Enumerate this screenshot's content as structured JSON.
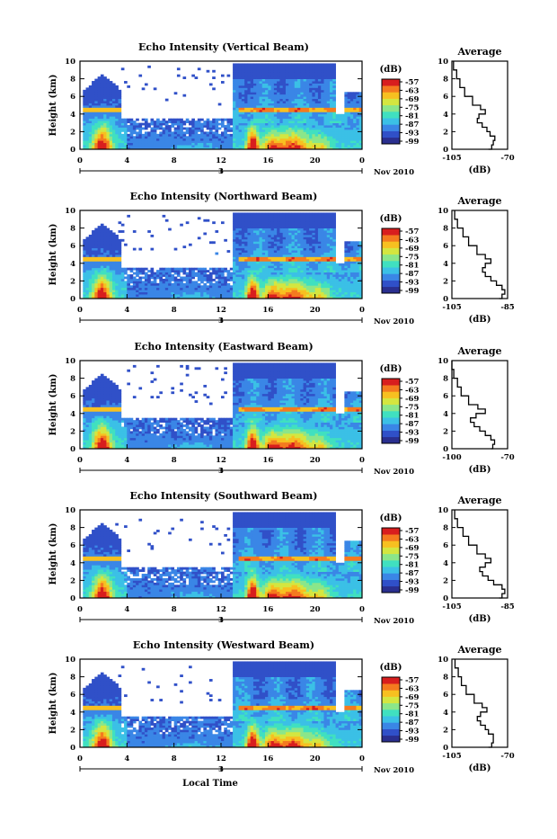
{
  "figure": {
    "xlabel": "Local Time",
    "time_ticks": [
      "0",
      "4",
      "8",
      "12",
      "16",
      "20",
      "0"
    ],
    "date_ticks": [
      "3"
    ],
    "date_label": "Nov 2010",
    "height_label": "Height (km)",
    "height_ticks": [
      "0",
      "2",
      "4",
      "6",
      "8",
      "10"
    ],
    "colorbar_unit": "(dB)",
    "colorbar_ticks": [
      "-57",
      "-63",
      "-69",
      "-75",
      "-81",
      "-87",
      "-93",
      "-99"
    ],
    "colorbar_colors": [
      "#2a2f8f",
      "#3050c8",
      "#3a86e6",
      "#3bc0e6",
      "#40e0c0",
      "#8be68a",
      "#d4e640",
      "#f7c020",
      "#f47a1f",
      "#d81e1e"
    ],
    "average_title": "Average",
    "average_xunit": "(dB)"
  },
  "chart_data": [
    {
      "type": "heatmap",
      "title": "Echo Intensity (Vertical Beam)",
      "xlabel": "",
      "ylabel": "Height (km)",
      "xlim": [
        0,
        24
      ],
      "ylim": [
        0,
        10
      ],
      "clim": [
        -99,
        -57
      ],
      "avg_xticks": [
        "-105",
        "-70"
      ],
      "avg_xlim": [
        -105,
        -70
      ],
      "avg_profile": [
        [
          -82,
          0
        ],
        [
          -80,
          0.5
        ],
        [
          -79,
          1
        ],
        [
          -78,
          1.5
        ],
        [
          -81,
          2
        ],
        [
          -83,
          2.5
        ],
        [
          -86,
          3
        ],
        [
          -89,
          3.5
        ],
        [
          -88,
          4
        ],
        [
          -84,
          4.5
        ],
        [
          -87,
          5
        ],
        [
          -92,
          6
        ],
        [
          -97,
          7
        ],
        [
          -100,
          8
        ],
        [
          -102,
          9
        ],
        [
          -104,
          10
        ]
      ]
    },
    {
      "type": "heatmap",
      "title": "Echo Intensity (Northward Beam)",
      "xlabel": "",
      "ylabel": "Height (km)",
      "xlim": [
        0,
        24
      ],
      "ylim": [
        0,
        10
      ],
      "clim": [
        -99,
        -57
      ],
      "avg_xticks": [
        "-105",
        "-85"
      ],
      "avg_xlim": [
        -105,
        -85
      ],
      "avg_profile": [
        [
          -88,
          0
        ],
        [
          -87,
          0.5
        ],
        [
          -86,
          1
        ],
        [
          -87,
          1.5
        ],
        [
          -89,
          2
        ],
        [
          -91,
          2.5
        ],
        [
          -93,
          3
        ],
        [
          -94,
          3.5
        ],
        [
          -93,
          4
        ],
        [
          -91,
          4.5
        ],
        [
          -93,
          5
        ],
        [
          -96,
          6
        ],
        [
          -99,
          7
        ],
        [
          -101,
          8
        ],
        [
          -103,
          9
        ],
        [
          -104,
          10
        ]
      ]
    },
    {
      "type": "heatmap",
      "title": "Echo Intensity (Eastward Beam)",
      "xlabel": "",
      "ylabel": "Height (km)",
      "xlim": [
        0,
        24
      ],
      "ylim": [
        0,
        10
      ],
      "clim": [
        -99,
        -57
      ],
      "avg_xticks": [
        "-100",
        "-70"
      ],
      "avg_xlim": [
        -100,
        -70
      ],
      "avg_profile": [
        [
          -79,
          0
        ],
        [
          -78,
          0.5
        ],
        [
          -77,
          1
        ],
        [
          -79,
          1.5
        ],
        [
          -82,
          2
        ],
        [
          -85,
          2.5
        ],
        [
          -88,
          3
        ],
        [
          -90,
          3.5
        ],
        [
          -87,
          4
        ],
        [
          -82,
          4.5
        ],
        [
          -86,
          5
        ],
        [
          -91,
          6
        ],
        [
          -95,
          7
        ],
        [
          -97,
          8
        ],
        [
          -99,
          9
        ],
        [
          -100,
          10
        ]
      ]
    },
    {
      "type": "heatmap",
      "title": "Echo Intensity (Southward Beam)",
      "xlabel": "",
      "ylabel": "Height (km)",
      "xlim": [
        0,
        24
      ],
      "ylim": [
        0,
        10
      ],
      "clim": [
        -99,
        -57
      ],
      "avg_xticks": [
        "-105",
        "-85"
      ],
      "avg_xlim": [
        -105,
        -85
      ],
      "avg_profile": [
        [
          -88,
          0
        ],
        [
          -87,
          0.5
        ],
        [
          -86,
          1
        ],
        [
          -87,
          1.5
        ],
        [
          -90,
          2
        ],
        [
          -92,
          2.5
        ],
        [
          -94,
          3
        ],
        [
          -95,
          3.5
        ],
        [
          -93,
          4
        ],
        [
          -91,
          4.5
        ],
        [
          -93,
          5
        ],
        [
          -96,
          6
        ],
        [
          -99,
          7
        ],
        [
          -101,
          8
        ],
        [
          -103,
          9
        ],
        [
          -104,
          10
        ]
      ]
    },
    {
      "type": "heatmap",
      "title": "Echo Intensity (Westward Beam)",
      "xlabel": "",
      "ylabel": "Height (km)",
      "xlim": [
        0,
        24
      ],
      "ylim": [
        0,
        10
      ],
      "clim": [
        -99,
        -57
      ],
      "avg_xticks": [
        "-105",
        "-70"
      ],
      "avg_xlim": [
        -105,
        -70
      ],
      "avg_profile": [
        [
          -82,
          0
        ],
        [
          -80,
          0.5
        ],
        [
          -79,
          1
        ],
        [
          -79,
          1.5
        ],
        [
          -82,
          2
        ],
        [
          -84,
          2.5
        ],
        [
          -87,
          3
        ],
        [
          -89,
          3.5
        ],
        [
          -87,
          4
        ],
        [
          -83,
          4.5
        ],
        [
          -86,
          5
        ],
        [
          -91,
          6
        ],
        [
          -96,
          7
        ],
        [
          -99,
          8
        ],
        [
          -101,
          9
        ],
        [
          -103,
          10
        ]
      ]
    }
  ]
}
